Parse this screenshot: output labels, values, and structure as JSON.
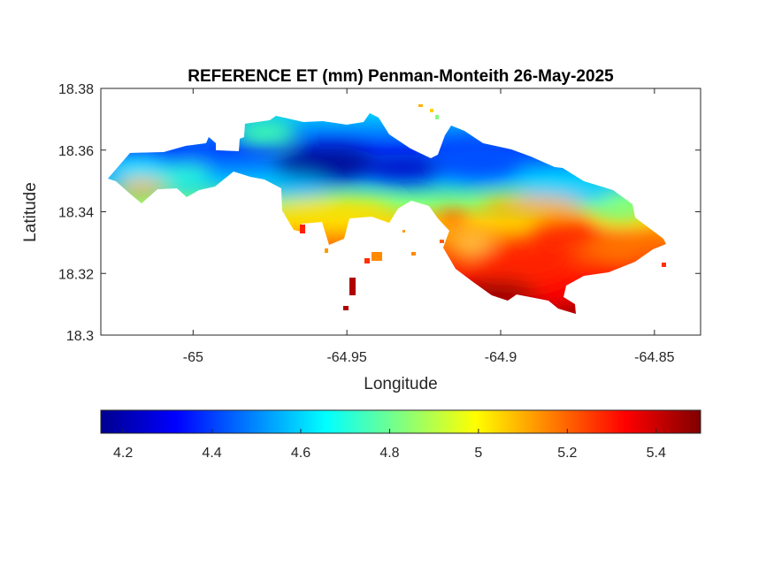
{
  "figure": {
    "title": "REFERENCE ET (mm) Penman-Monteith 26-May-2025"
  },
  "map": {
    "xlabel": "Longitude",
    "ylabel": "Latitude",
    "xlim": [
      -65.03,
      -64.835
    ],
    "ylim": [
      18.3,
      18.38
    ],
    "xticks": [
      {
        "value": -65,
        "label": "-65"
      },
      {
        "value": -64.95,
        "label": "-64.95"
      },
      {
        "value": -64.9,
        "label": "-64.9"
      },
      {
        "value": -64.85,
        "label": "-64.85"
      }
    ],
    "yticks": [
      {
        "value": 18.38,
        "label": "18.38"
      },
      {
        "value": 18.36,
        "label": "18.36"
      },
      {
        "value": 18.34,
        "label": "18.34"
      },
      {
        "value": 18.32,
        "label": "18.32"
      },
      {
        "value": 18.3,
        "label": "18.3"
      }
    ],
    "colormap": "jet",
    "colors": [
      "#00008f",
      "#0000ff",
      "#0080ff",
      "#00ffff",
      "#80ff80",
      "#ffff00",
      "#ff8000",
      "#ff0000",
      "#800000"
    ]
  },
  "colorbar": {
    "limits": [
      4.15,
      5.5
    ],
    "ticks": [
      {
        "value": 4.2,
        "label": "4.2"
      },
      {
        "value": 4.4,
        "label": "4.4"
      },
      {
        "value": 4.6,
        "label": "4.6"
      },
      {
        "value": 4.8,
        "label": "4.8"
      },
      {
        "value": 5,
        "label": "5"
      },
      {
        "value": 5.2,
        "label": "5.2"
      },
      {
        "value": 5.4,
        "label": "5.4"
      }
    ]
  }
}
